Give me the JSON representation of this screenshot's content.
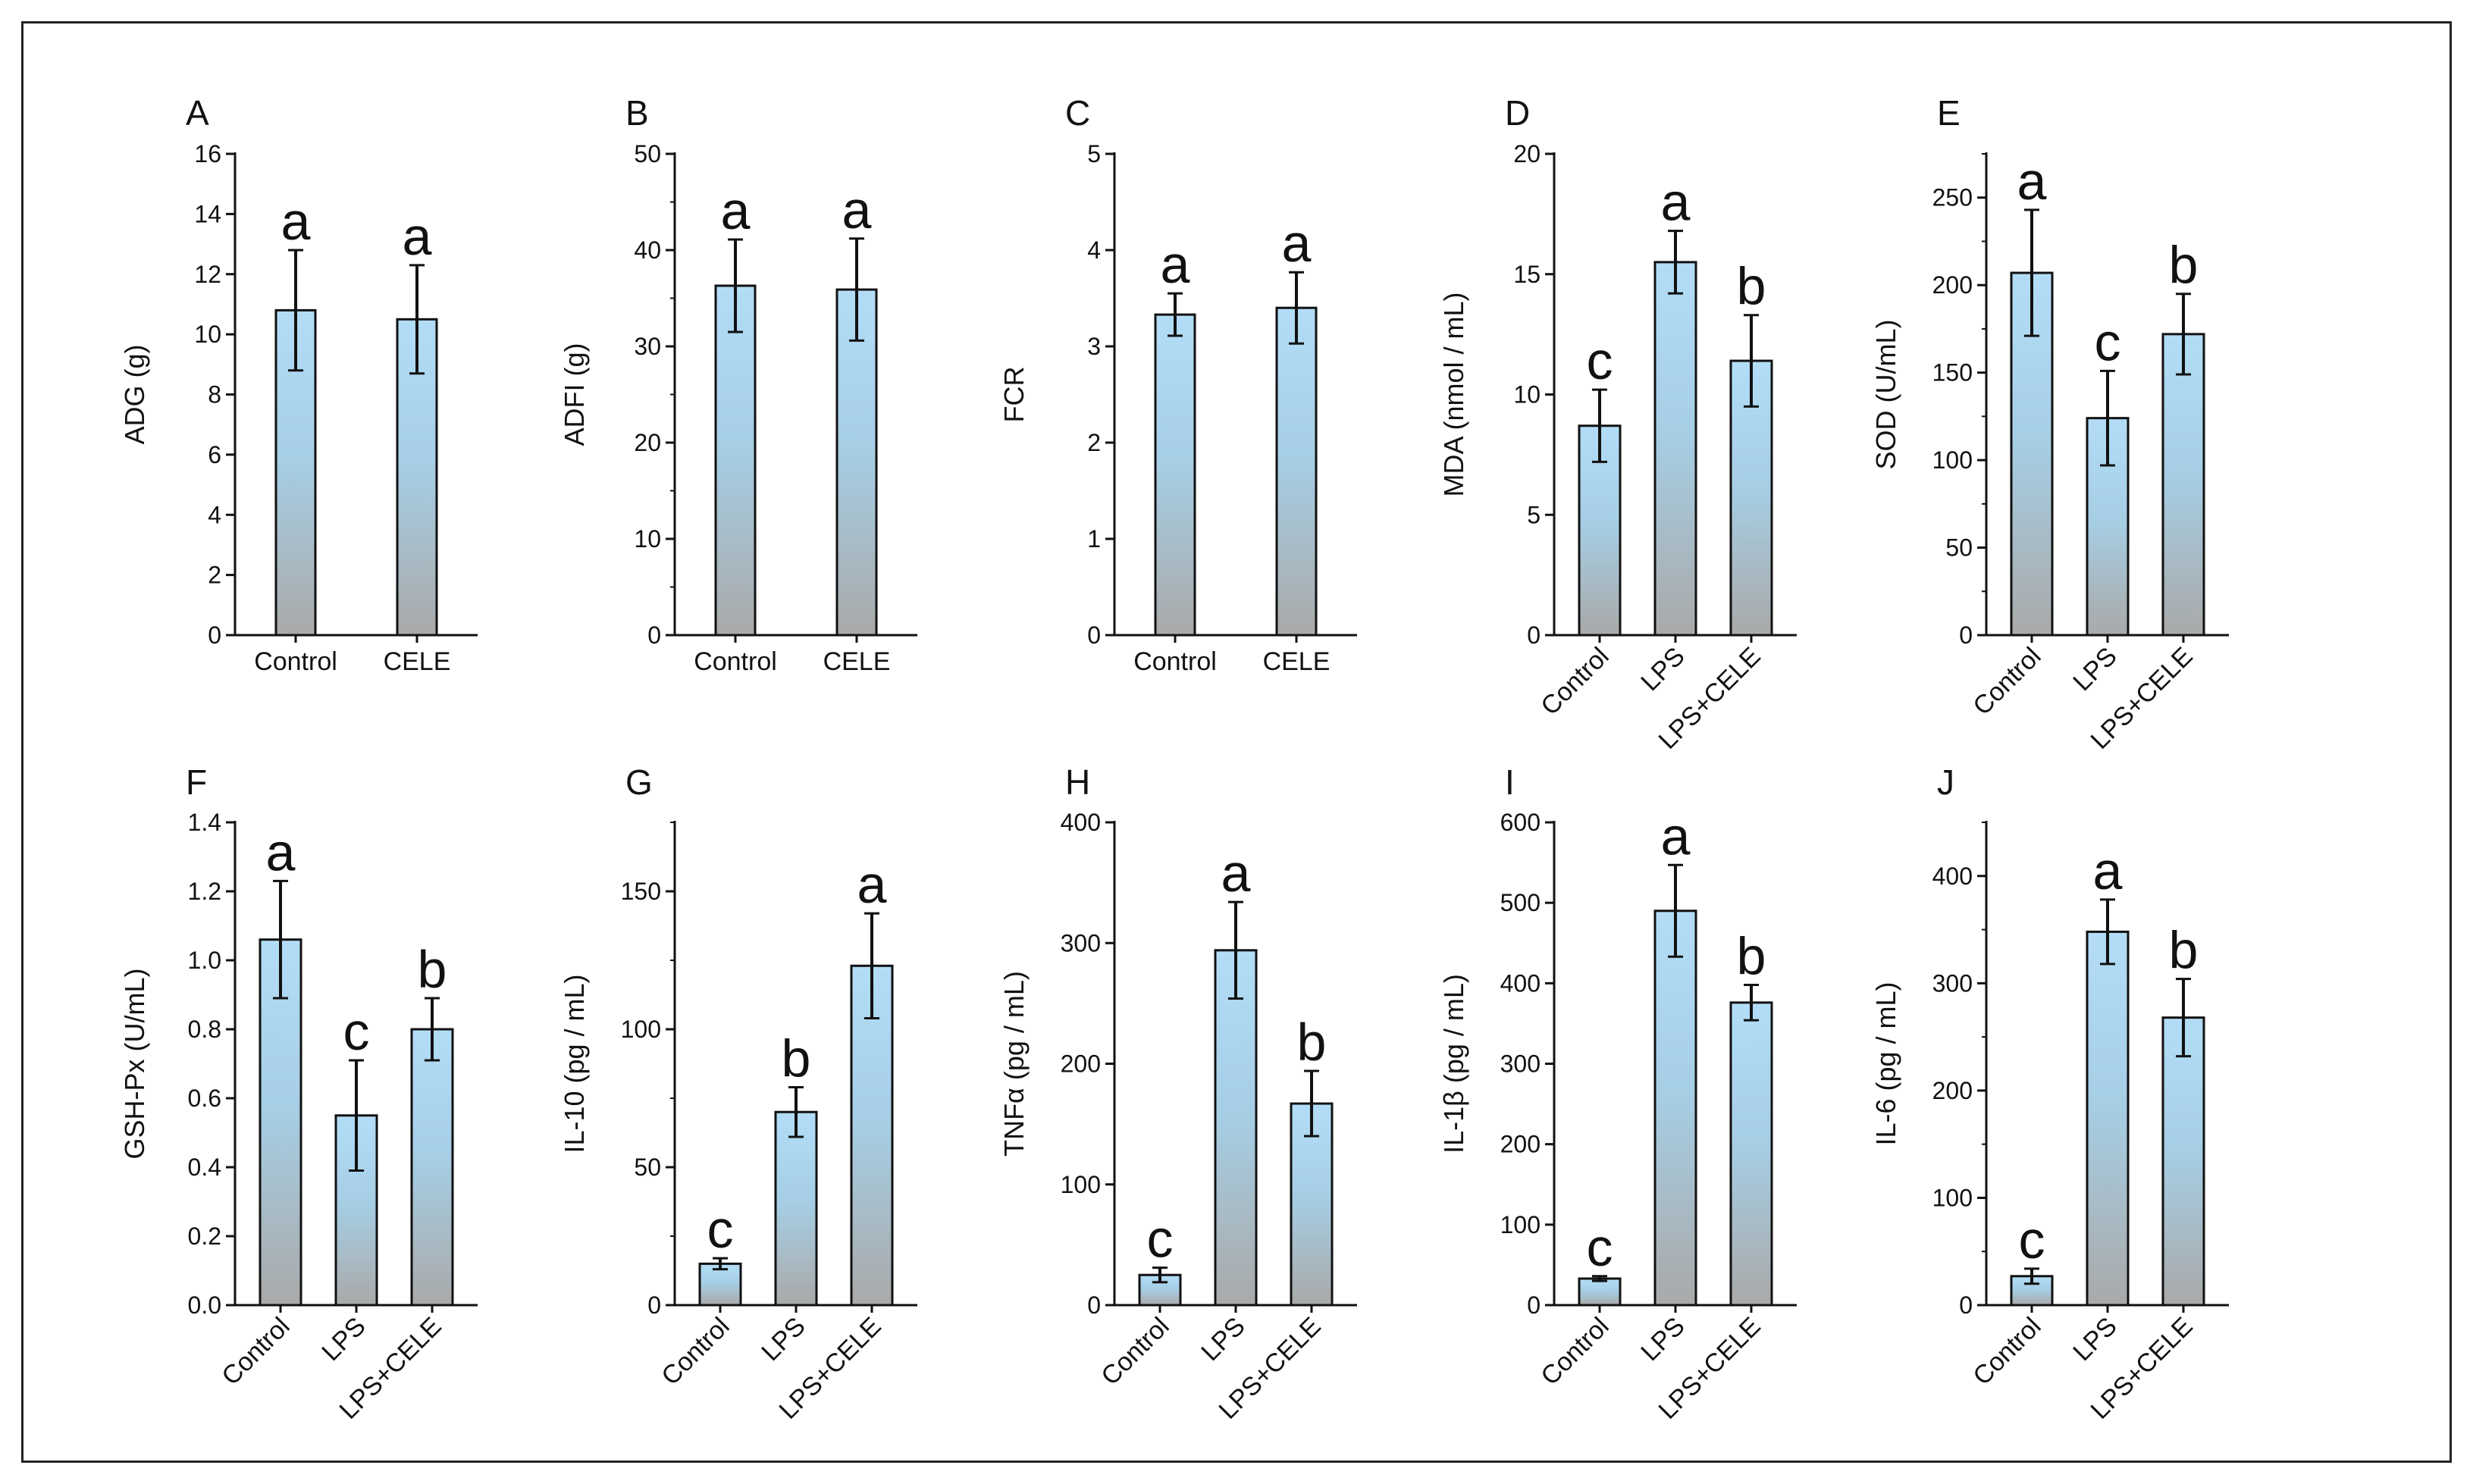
{
  "chart_data": [
    {
      "panel": "A",
      "type": "bar",
      "ylabel": "ADG (g)",
      "ylim": [
        0,
        16
      ],
      "yticks": [
        0,
        2,
        4,
        6,
        8,
        10,
        12,
        14,
        16
      ],
      "minor": false,
      "rotate": false,
      "categories": [
        "Control",
        "CELE"
      ],
      "values": [
        10.8,
        10.5
      ],
      "errors": [
        2.0,
        1.8
      ],
      "letters": [
        "a",
        "a"
      ]
    },
    {
      "panel": "B",
      "type": "bar",
      "ylabel": "ADFI (g)",
      "ylim": [
        0,
        50
      ],
      "yticks": [
        0,
        10,
        20,
        30,
        40,
        50
      ],
      "minor": true,
      "rotate": false,
      "categories": [
        "Control",
        "CELE"
      ],
      "values": [
        36.3,
        35.9
      ],
      "errors": [
        4.8,
        5.3
      ],
      "letters": [
        "a",
        "a"
      ]
    },
    {
      "panel": "C",
      "type": "bar",
      "ylabel": "FCR",
      "ylim": [
        0,
        5
      ],
      "yticks": [
        0,
        1,
        2,
        3,
        4,
        5
      ],
      "minor": false,
      "rotate": false,
      "categories": [
        "Control",
        "CELE"
      ],
      "values": [
        3.33,
        3.4
      ],
      "errors": [
        0.22,
        0.37
      ],
      "letters": [
        "a",
        "a"
      ]
    },
    {
      "panel": "D",
      "type": "bar",
      "ylabel": "MDA (nmol / mL)",
      "ylim": [
        0,
        20
      ],
      "yticks": [
        0,
        5,
        10,
        15,
        20
      ],
      "minor": false,
      "rotate": true,
      "categories": [
        "Control",
        "LPS",
        "LPS+CELE"
      ],
      "values": [
        8.7,
        15.5,
        11.4
      ],
      "errors": [
        1.5,
        1.3,
        1.9
      ],
      "letters": [
        "c",
        "a",
        "b"
      ]
    },
    {
      "panel": "E",
      "type": "bar",
      "ylabel": "SOD (U/mL)",
      "ylim": [
        0,
        275
      ],
      "yticks": [
        0,
        50,
        100,
        150,
        200,
        250
      ],
      "minor": true,
      "rotate": true,
      "categories": [
        "Control",
        "LPS",
        "LPS+CELE"
      ],
      "values": [
        207,
        124,
        172
      ],
      "errors": [
        36,
        27,
        23
      ],
      "letters": [
        "a",
        "c",
        "b"
      ]
    },
    {
      "panel": "F",
      "type": "bar",
      "ylabel": "GSH-Px (U/mL)",
      "ylim": [
        0,
        1.4
      ],
      "yticks": [
        0.0,
        0.2,
        0.4,
        0.6,
        0.8,
        1.0,
        1.2,
        1.4
      ],
      "tickfmt": 1,
      "minor": false,
      "rotate": true,
      "categories": [
        "Control",
        "LPS",
        "LPS+CELE"
      ],
      "values": [
        1.06,
        0.55,
        0.8
      ],
      "errors": [
        0.17,
        0.16,
        0.09
      ],
      "letters": [
        "a",
        "c",
        "b"
      ]
    },
    {
      "panel": "G",
      "type": "bar",
      "ylabel": "IL-10 (pg / mL)",
      "ylim": [
        0,
        175
      ],
      "yticks": [
        0,
        50,
        100,
        150
      ],
      "minor": true,
      "rotate": true,
      "categories": [
        "Control",
        "LPS",
        "LPS+CELE"
      ],
      "values": [
        15,
        70,
        123
      ],
      "errors": [
        2,
        9,
        19
      ],
      "letters": [
        "c",
        "b",
        "a"
      ]
    },
    {
      "panel": "H",
      "type": "bar",
      "ylabel": "TNFα (pg / mL)",
      "ylim": [
        0,
        400
      ],
      "yticks": [
        0,
        100,
        200,
        300,
        400
      ],
      "minor": false,
      "rotate": true,
      "categories": [
        "Control",
        "LPS",
        "LPS+CELE"
      ],
      "values": [
        25,
        294,
        167
      ],
      "errors": [
        6,
        40,
        27
      ],
      "letters": [
        "c",
        "a",
        "b"
      ]
    },
    {
      "panel": "I",
      "type": "bar",
      "ylabel": "IL-1β (pg / mL)",
      "ylim": [
        0,
        600
      ],
      "yticks": [
        0,
        100,
        200,
        300,
        400,
        500,
        600
      ],
      "minor": false,
      "rotate": true,
      "categories": [
        "Control",
        "LPS",
        "LPS+CELE"
      ],
      "values": [
        33,
        490,
        376
      ],
      "errors": [
        3,
        57,
        22
      ],
      "letters": [
        "c",
        "a",
        "b"
      ]
    },
    {
      "panel": "J",
      "type": "bar",
      "ylabel": "IL-6 (pg / mL)",
      "ylim": [
        0,
        450
      ],
      "yticks": [
        0,
        100,
        200,
        300,
        400
      ],
      "minor": true,
      "rotate": true,
      "categories": [
        "Control",
        "LPS",
        "LPS+CELE"
      ],
      "values": [
        27,
        348,
        268
      ],
      "errors": [
        7,
        30,
        36
      ],
      "letters": [
        "c",
        "a",
        "b"
      ]
    }
  ],
  "colors": {
    "bar_top": "#b3ddf7",
    "bar_bottom": "#a9a9a9",
    "axis": "#111111"
  }
}
